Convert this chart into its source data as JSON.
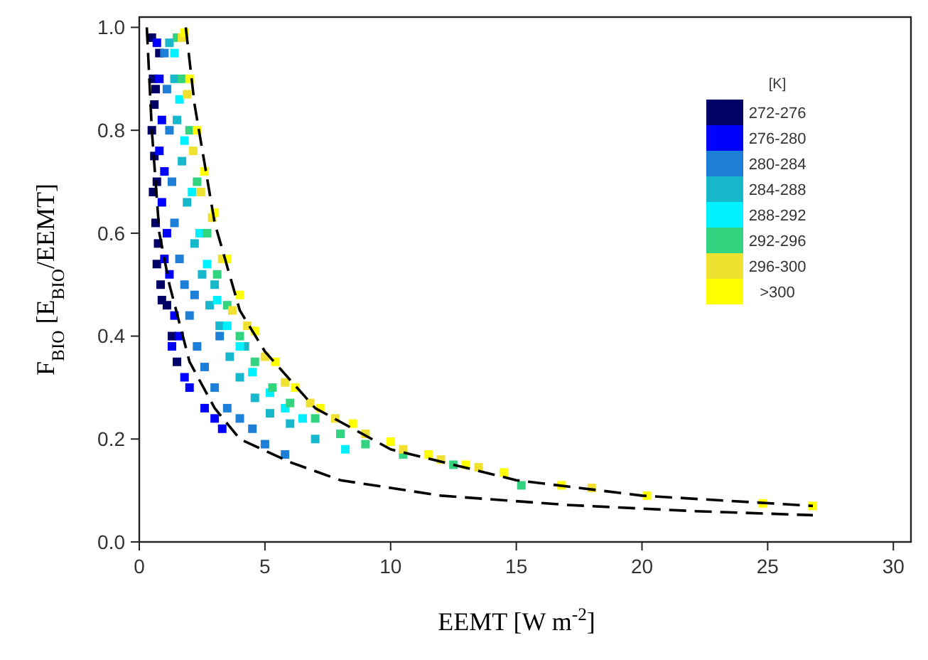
{
  "chart_data": {
    "type": "scatter",
    "xlabel": "EEMT  [W m$^{-2}$]",
    "ylabel": "F$_{BIO}$  [E$_{BIO}$/EEMT]",
    "legend_title": "[K]",
    "legend": "top right",
    "marker": "square",
    "grid": false,
    "xlim": [
      0,
      30.7
    ],
    "ylim": [
      0,
      1.02
    ],
    "xticks": [
      0,
      5,
      10,
      15,
      20,
      25,
      30
    ],
    "yticks": [
      {
        "value": 0,
        "label": "0.0"
      },
      {
        "value": 0.2,
        "label": "0.2"
      },
      {
        "value": 0.4,
        "label": "0.4"
      },
      {
        "value": 0.6,
        "label": "0.6"
      },
      {
        "value": 0.8,
        "label": "0.8"
      },
      {
        "value": 1,
        "label": "1.0"
      }
    ],
    "series": [
      {
        "name": "272-276",
        "color": "#000066",
        "x": [
          0.5,
          0.55,
          0.6,
          0.5,
          0.6,
          0.7,
          0.55,
          0.65,
          0.75,
          0.7,
          0.85,
          0.9,
          1.1,
          0.8,
          0.65,
          1.3,
          1.5
        ],
        "values": [
          0.98,
          0.9,
          0.85,
          0.8,
          0.75,
          0.7,
          0.68,
          0.62,
          0.58,
          0.54,
          0.5,
          0.47,
          0.46,
          0.95,
          0.88,
          0.4,
          0.35
        ]
      },
      {
        "name": "276-280",
        "color": "#0000ff",
        "x": [
          0.7,
          0.8,
          0.9,
          0.8,
          1.0,
          0.9,
          1.1,
          1.0,
          1.2,
          1.4,
          1.6,
          1.3,
          1.8,
          2.0,
          2.6,
          3.0,
          3.3
        ],
        "values": [
          0.97,
          0.9,
          0.82,
          0.76,
          0.72,
          0.66,
          0.6,
          0.55,
          0.52,
          0.44,
          0.4,
          0.38,
          0.32,
          0.3,
          0.26,
          0.24,
          0.22
        ]
      },
      {
        "name": "280-284",
        "color": "#1e7fd8",
        "x": [
          1.0,
          1.1,
          1.2,
          1.3,
          1.4,
          1.6,
          1.8,
          2.0,
          2.3,
          2.6,
          3.0,
          3.5,
          4.0,
          4.5,
          5.0,
          5.8,
          3.2,
          2.2
        ],
        "values": [
          0.95,
          0.88,
          0.8,
          0.7,
          0.62,
          0.55,
          0.5,
          0.44,
          0.38,
          0.34,
          0.3,
          0.26,
          0.24,
          0.22,
          0.19,
          0.17,
          0.4,
          0.48
        ]
      },
      {
        "name": "284-288",
        "color": "#18b8cc",
        "x": [
          1.2,
          1.4,
          1.5,
          1.7,
          1.9,
          2.2,
          2.5,
          2.8,
          3.2,
          3.6,
          4.0,
          4.6,
          5.2,
          6.0,
          7.0,
          3.0,
          4.2
        ],
        "values": [
          0.97,
          0.9,
          0.82,
          0.74,
          0.66,
          0.58,
          0.52,
          0.46,
          0.42,
          0.36,
          0.32,
          0.28,
          0.25,
          0.23,
          0.2,
          0.5,
          0.38
        ]
      },
      {
        "name": "288-292",
        "color": "#00f0ff",
        "x": [
          1.4,
          1.6,
          1.8,
          2.1,
          2.4,
          2.7,
          3.1,
          3.5,
          4.0,
          4.5,
          5.2,
          5.8,
          8.2,
          6.5
        ],
        "values": [
          0.95,
          0.86,
          0.78,
          0.68,
          0.6,
          0.54,
          0.47,
          0.42,
          0.38,
          0.33,
          0.29,
          0.26,
          0.18,
          0.24
        ]
      },
      {
        "name": "292-296",
        "color": "#33d480",
        "x": [
          1.5,
          1.7,
          2.0,
          2.3,
          2.7,
          3.1,
          3.5,
          4.0,
          4.6,
          5.3,
          6.0,
          7.0,
          8.0,
          9.0,
          10.5,
          12.5,
          15.2
        ],
        "values": [
          0.98,
          0.9,
          0.8,
          0.7,
          0.6,
          0.52,
          0.46,
          0.4,
          0.35,
          0.3,
          0.27,
          0.24,
          0.21,
          0.19,
          0.17,
          0.15,
          0.11
        ]
      },
      {
        "name": "296-300",
        "color": "#f0e030",
        "x": [
          1.7,
          1.9,
          2.15,
          2.45,
          2.9,
          3.3,
          3.7,
          4.3,
          5.0,
          5.8,
          6.8,
          7.8,
          9.0,
          10.5,
          12,
          13.5,
          18
        ],
        "values": [
          0.98,
          0.87,
          0.76,
          0.68,
          0.63,
          0.55,
          0.45,
          0.42,
          0.36,
          0.31,
          0.27,
          0.24,
          0.21,
          0.18,
          0.16,
          0.145,
          0.105
        ]
      },
      {
        "name": ">300",
        "color": "#ffff00",
        "x": [
          1.8,
          2.0,
          2.3,
          2.6,
          3.0,
          3.5,
          4.0,
          4.6,
          5.4,
          6.2,
          7.2,
          8.5,
          10,
          11.5,
          13,
          14.5,
          16.8,
          20.2,
          24.8,
          26.8
        ],
        "values": [
          0.99,
          0.9,
          0.8,
          0.72,
          0.64,
          0.55,
          0.48,
          0.41,
          0.35,
          0.3,
          0.26,
          0.23,
          0.195,
          0.17,
          0.15,
          0.135,
          0.11,
          0.09,
          0.075,
          0.07
        ]
      },
      {
        "type": "line",
        "color": "#000000",
        "line_style": "dashed",
        "marker": "none",
        "x": [
          1.85,
          2.2,
          3,
          4,
          5,
          7,
          10,
          15,
          20,
          26.8
        ],
        "values": [
          1.0,
          0.85,
          0.62,
          0.45,
          0.37,
          0.26,
          0.18,
          0.12,
          0.09,
          0.07
        ]
      },
      {
        "type": "line",
        "color": "#000000",
        "line_style": "dashed",
        "marker": "none",
        "x": [
          0.3,
          0.5,
          0.8,
          1.2,
          2,
          3,
          4,
          6,
          8,
          10,
          12,
          17,
          22,
          26.8
        ],
        "values": [
          1.0,
          0.8,
          0.6,
          0.5,
          0.35,
          0.26,
          0.2,
          0.155,
          0.12,
          0.105,
          0.09,
          0.072,
          0.06,
          0.052
        ]
      }
    ]
  }
}
